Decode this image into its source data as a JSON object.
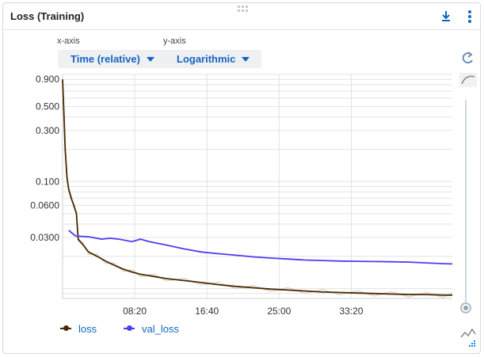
{
  "card": {
    "title": "Loss (Training)"
  },
  "controls": {
    "xaxis_label": "x-axis",
    "yaxis_label": "y-axis",
    "xaxis_value": "Time (relative)",
    "yaxis_value": "Logarithmic"
  },
  "icons": {
    "download": "download-icon",
    "more": "more-vert-icon",
    "reset": "reset-zoom-icon",
    "smoothing": "smoothing-curve-icon",
    "outliers": "outlier-icon",
    "scatter": "scatter-icon"
  },
  "colors": {
    "loss": "#4a2800",
    "val_loss": "#4b3df0",
    "accent": "#1565c0"
  },
  "chart_data": {
    "type": "line",
    "title": "",
    "xlabel": "",
    "ylabel": "",
    "xscale": "linear",
    "yscale": "log",
    "x_unit": "minutes",
    "xlim": [
      0,
      45
    ],
    "ylim": [
      0.0081,
      1.0
    ],
    "x_ticks": [
      {
        "value": 8.333,
        "label": "08:20"
      },
      {
        "value": 16.667,
        "label": "16:40"
      },
      {
        "value": 25,
        "label": "25:00"
      },
      {
        "value": 33.333,
        "label": "33:20"
      }
    ],
    "y_ticks": [
      {
        "value": 0.9,
        "label": "0.900"
      },
      {
        "value": 0.5,
        "label": "0.500"
      },
      {
        "value": 0.3,
        "label": "0.300"
      },
      {
        "value": 0.1,
        "label": "0.100"
      },
      {
        "value": 0.06,
        "label": "0.0600"
      },
      {
        "value": 0.03,
        "label": "0.0300"
      }
    ],
    "grid": true,
    "legend": "bottom-left",
    "series": [
      {
        "name": "loss",
        "x": [
          0,
          0.15,
          0.3,
          0.5,
          0.7,
          1.0,
          1.3,
          1.6,
          1.8,
          2.3,
          3.0,
          4.0,
          5.0,
          6.0,
          7.0,
          8.0,
          9.0,
          10.5,
          12.0,
          14.0,
          16.0,
          18.0,
          20.0,
          22.0,
          24.0,
          26.0,
          28.0,
          30.0,
          32.0,
          34.0,
          36.0,
          38.0,
          40.0,
          42.0,
          44.0,
          45.0
        ],
        "y": [
          0.9,
          0.45,
          0.2,
          0.11,
          0.085,
          0.07,
          0.06,
          0.05,
          0.029,
          0.026,
          0.022,
          0.02,
          0.018,
          0.0165,
          0.0152,
          0.0143,
          0.0136,
          0.013,
          0.0124,
          0.0119,
          0.0114,
          0.0109,
          0.0105,
          0.0102,
          0.0099,
          0.0097,
          0.0095,
          0.0093,
          0.0092,
          0.0091,
          0.009,
          0.0089,
          0.0088,
          0.0088,
          0.0087,
          0.0087
        ]
      },
      {
        "name": "val_loss",
        "x": [
          0.7,
          1.5,
          3.0,
          4.5,
          5.5,
          6.5,
          8.0,
          9.0,
          10.0,
          12.0,
          14.0,
          16.0,
          18.0,
          20.0,
          22.0,
          24.0,
          26.0,
          28.0,
          30.0,
          32.0,
          34.0,
          36.0,
          38.0,
          40.0,
          42.0,
          44.0,
          45.0
        ],
        "y": [
          0.035,
          0.031,
          0.0305,
          0.029,
          0.0295,
          0.029,
          0.0275,
          0.029,
          0.0275,
          0.0255,
          0.0235,
          0.022,
          0.0212,
          0.0205,
          0.0198,
          0.0193,
          0.0189,
          0.0185,
          0.0183,
          0.0181,
          0.018,
          0.0179,
          0.0178,
          0.0177,
          0.0174,
          0.0171,
          0.017
        ]
      }
    ]
  }
}
